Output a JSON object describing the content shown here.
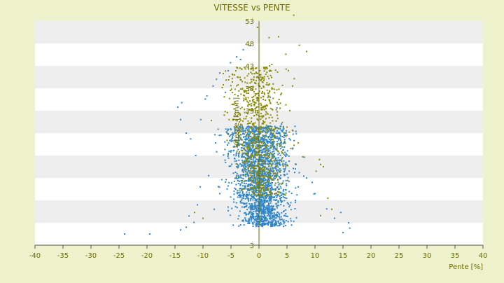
{
  "chart_data": {
    "type": "scatter",
    "title": "VITESSE vs PENTE",
    "xlabel": "Pente [%]",
    "ylabel": "Vitesse [km/h]",
    "xlim": [
      -40,
      40
    ],
    "ylim": [
      3,
      53
    ],
    "x_ticks": [
      -40,
      -35,
      -30,
      -25,
      -20,
      -15,
      -10,
      -5,
      0,
      5,
      10,
      15,
      20,
      25,
      30,
      35,
      40
    ],
    "y_ticks": [
      3,
      8,
      13,
      18,
      23,
      28,
      33,
      38,
      43,
      48,
      53
    ],
    "y_tick_labels_shown": [
      "53",
      "48",
      "43",
      "38",
      "33",
      "3"
    ],
    "grid": "horizontal bands",
    "legend": "none",
    "colors": {
      "background": "#eef2cc",
      "plot_band_light": "#ffffff",
      "plot_band_dark": "#eeeeee",
      "axis_text": "#6b6b00",
      "series_blue": "#2f86c9",
      "series_olive": "#8a8a00"
    },
    "series": [
      {
        "color": "#2f86c9",
        "points": [
          [
            -24,
            5.5
          ],
          [
            -19.5,
            5.5
          ],
          [
            -14,
            6.4
          ],
          [
            -13,
            7.0
          ],
          [
            -12.5,
            9.5
          ],
          [
            -11.6,
            8.1
          ],
          [
            -14.5,
            33.8
          ],
          [
            -13.8,
            34.8
          ],
          [
            -14,
            31.0
          ],
          [
            -13,
            28.0
          ],
          [
            -12.2,
            26.7
          ],
          [
            -11.3,
            23.0
          ],
          [
            -10.4,
            31.0
          ],
          [
            -9.6,
            35.6
          ],
          [
            -9.3,
            36.3
          ],
          [
            -8.2,
            38.5
          ],
          [
            -7.6,
            40.0
          ],
          [
            -7.0,
            41.4
          ],
          [
            -6.0,
            37.1
          ],
          [
            -5.5,
            41.9
          ],
          [
            -5.1,
            43.7
          ],
          [
            -4.0,
            45.0
          ],
          [
            -3.3,
            44.4
          ],
          [
            -2.8,
            46.6
          ],
          [
            -1.6,
            47.5
          ],
          [
            -10.5,
            16.0
          ],
          [
            -11.0,
            12.0
          ],
          [
            -9.0,
            18.5
          ],
          [
            -8.0,
            11.0
          ],
          [
            -7.0,
            14.5
          ],
          [
            15.0,
            5.8
          ],
          [
            16.2,
            6.8
          ],
          [
            16.0,
            8.0
          ],
          [
            13.5,
            9.0
          ],
          [
            14.6,
            10.3
          ],
          [
            12.1,
            11.1
          ],
          [
            10.0,
            14.5
          ],
          [
            9.5,
            17.0
          ],
          [
            8.0,
            18.4
          ],
          [
            7.0,
            16.0
          ],
          [
            6.5,
            20.0
          ],
          [
            6.0,
            24.5
          ],
          [
            5.0,
            27.5
          ],
          [
            4.0,
            30.0
          ],
          [
            3.2,
            33.6
          ],
          [
            2.0,
            36.0
          ]
        ],
        "cloud": {
          "n": 2200,
          "x_center": 0.5,
          "x_sd": 3.5,
          "y_center": 15,
          "y_sd": 7,
          "seed": 7
        }
      },
      {
        "color": "#8a8a00",
        "points": [
          [
            6.2,
            54.3
          ],
          [
            -0.3,
            51.6
          ],
          [
            1.8,
            49.3
          ],
          [
            3.5,
            49.5
          ],
          [
            7.2,
            47.6
          ],
          [
            4.8,
            45.6
          ],
          [
            8.5,
            46.2
          ],
          [
            1.9,
            43.0
          ],
          [
            2.3,
            43.3
          ],
          [
            -0.4,
            40.4
          ],
          [
            6.0,
            38.5
          ],
          [
            -3.0,
            39.5
          ],
          [
            -4.7,
            41.0
          ],
          [
            -3.4,
            42.5
          ],
          [
            5.5,
            33.0
          ],
          [
            11.0,
            21.0
          ],
          [
            10.2,
            19.5
          ],
          [
            11.5,
            20.5
          ],
          [
            10.8,
            22.1
          ],
          [
            7.8,
            22.7
          ],
          [
            -6.2,
            32.0
          ],
          [
            -8.5,
            30.8
          ],
          [
            12.3,
            13.5
          ],
          [
            11.0,
            9.6
          ],
          [
            13.0,
            11.0
          ],
          [
            -11.5,
            10.3
          ],
          [
            -10.0,
            9.0
          ]
        ],
        "cloud": {
          "n": 750,
          "x_center": 0.7,
          "x_sd": 2.8,
          "y_center": 24,
          "y_sd": 9,
          "seed": 19
        }
      }
    ]
  }
}
